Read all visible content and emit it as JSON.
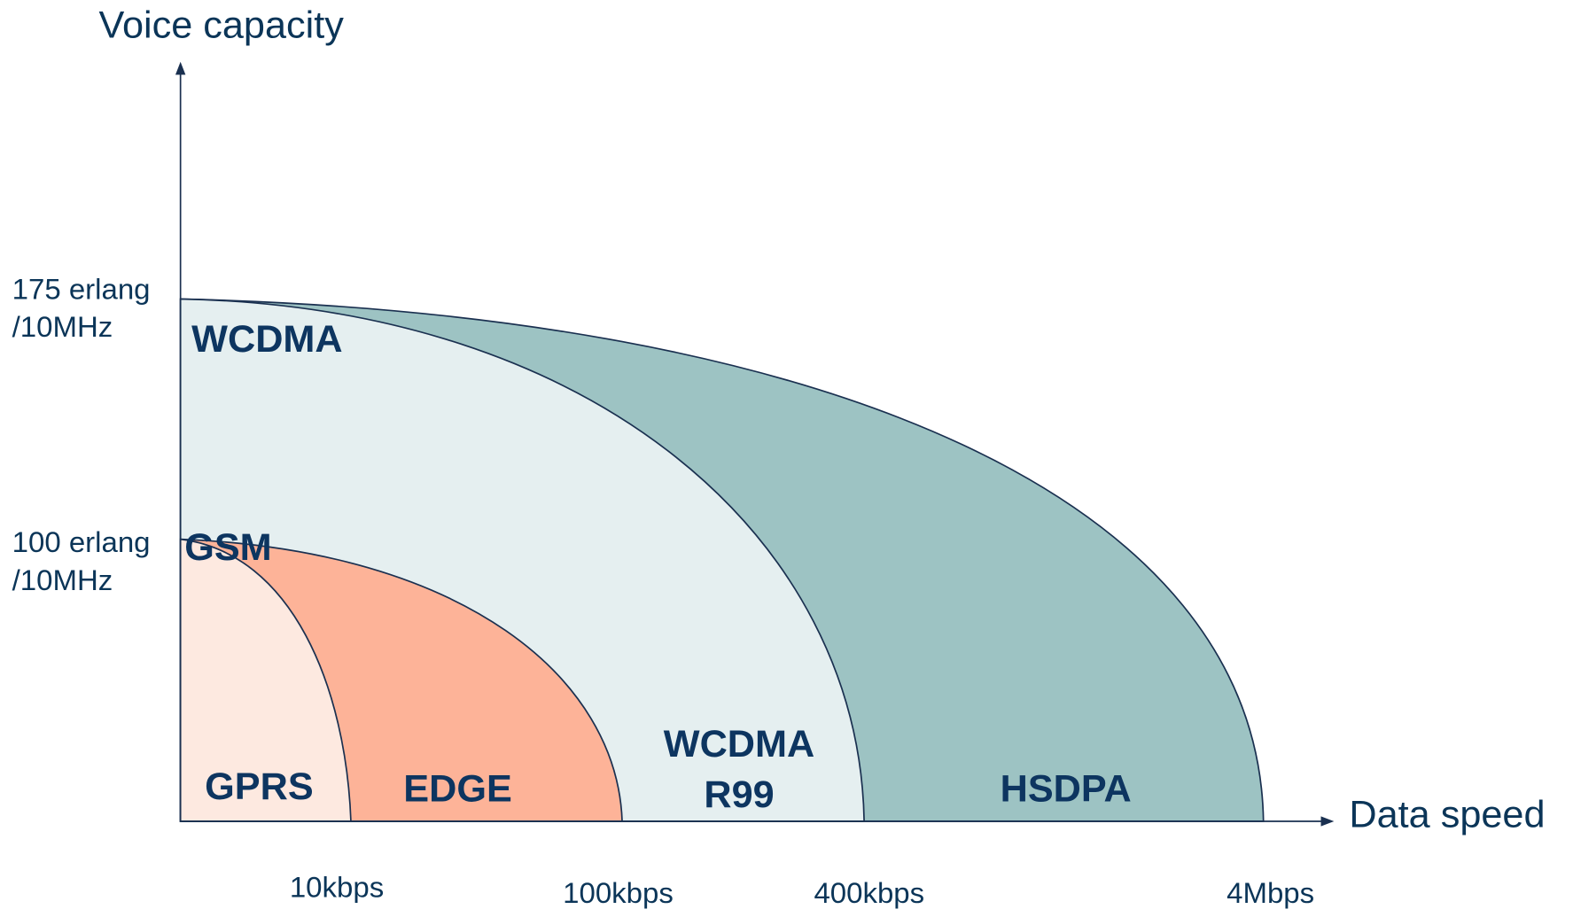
{
  "axes": {
    "y_label": "Voice capacity",
    "x_label": "Data speed",
    "y_ticks": [
      [
        "175 erlang",
        "/10MHz"
      ],
      [
        "100 erlang",
        "/10MHz"
      ]
    ],
    "x_ticks": [
      "10kbps",
      "100kbps",
      "400kbps",
      "4Mbps"
    ]
  },
  "regions": [
    {
      "label": [
        "GPRS"
      ]
    },
    {
      "label": [
        "EDGE"
      ]
    },
    {
      "label": [
        "WCDMA",
        "R99"
      ]
    },
    {
      "label": [
        "HSDPA"
      ]
    },
    {
      "label": [
        "WCDMA"
      ]
    },
    {
      "label": [
        "GSM"
      ]
    }
  ]
}
